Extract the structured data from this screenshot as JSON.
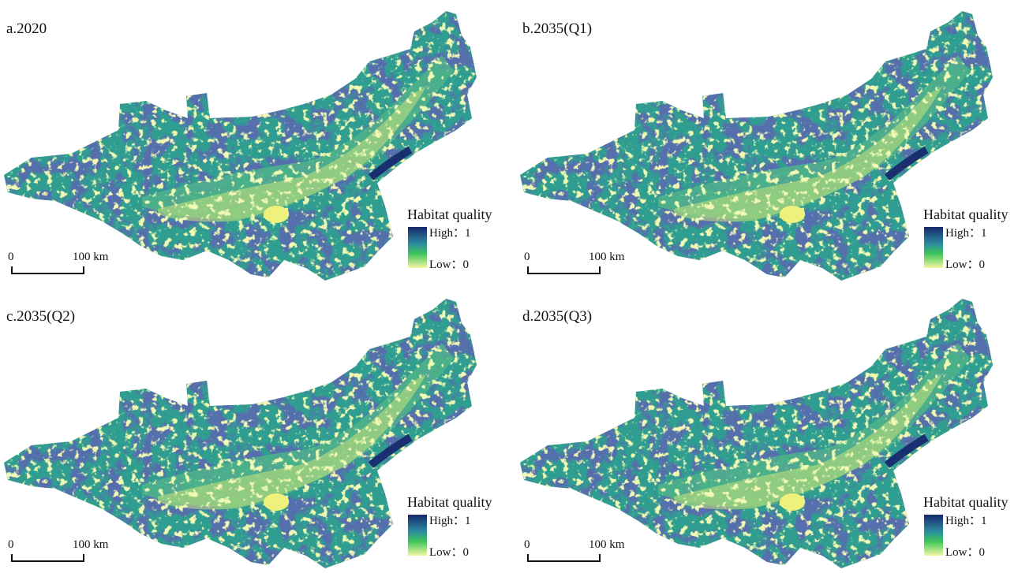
{
  "panels": [
    {
      "title": "a.2020",
      "legend": {
        "title": "Habitat quality",
        "high": "High：1",
        "low": "Low：0"
      },
      "scale_bar": {
        "start": "0",
        "end": "100 km"
      }
    },
    {
      "title": "b.2035(Q1)",
      "legend": {
        "title": "Habitat quality",
        "high": "High：1",
        "low": "Low：0"
      },
      "scale_bar": {
        "start": "0",
        "end": "100 km"
      }
    },
    {
      "title": "c.2035(Q2)",
      "legend": {
        "title": "Habitat quality",
        "high": "High：1",
        "low": "Low：0"
      },
      "scale_bar": {
        "start": "0",
        "end": "100 km"
      }
    },
    {
      "title": "d.2035(Q3)",
      "legend": {
        "title": "Habitat quality",
        "high": "High：1",
        "low": "Low：0"
      },
      "scale_bar": {
        "start": "0",
        "end": "100 km"
      }
    }
  ]
}
